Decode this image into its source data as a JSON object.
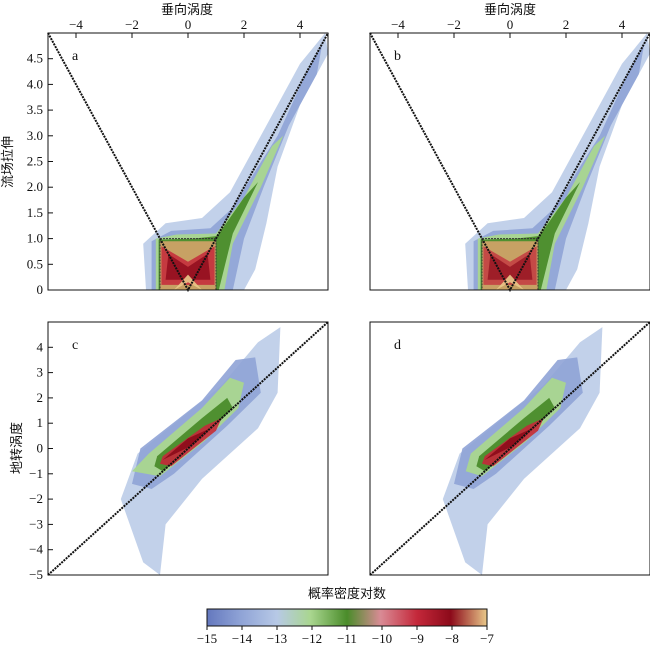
{
  "figure": {
    "top_xlabel": "垂向涡度",
    "ylabel_top": "流场拉伸",
    "ylabel_bottom": "地转涡度",
    "colorbar_label": "概率密度对数"
  },
  "colors": {
    "colormap": [
      "#6478be",
      "#8fa3d6",
      "#b7c9e6",
      "#a9d68f",
      "#6da343",
      "#4a8c2a",
      "#d98b95",
      "#c4283a",
      "#8c0a1a",
      "#d4a36a",
      "#e9c98a"
    ],
    "diagonal_line": "#111111"
  },
  "chart_data": [
    {
      "panel": "a",
      "type": "heatmap",
      "xlabel": "垂向涡度",
      "ylabel": "流场拉伸",
      "xlim": [
        -5,
        5
      ],
      "ylim": [
        0,
        5
      ],
      "xticks": [
        -4,
        -2,
        0,
        2,
        4
      ],
      "yticks": [
        0,
        0.5,
        1.0,
        1.5,
        2.0,
        2.5,
        3.0,
        3.5,
        4.0,
        4.5
      ],
      "reference_lines": [
        "y = |x|"
      ],
      "box": {
        "x": [
          -1,
          1
        ],
        "y": [
          0,
          1
        ]
      },
      "colorbar": {
        "min": -15,
        "max": -7,
        "ticks": [
          -15,
          -14,
          -13,
          -12,
          -11,
          -10,
          -9,
          -8,
          -7
        ]
      }
    },
    {
      "panel": "b",
      "type": "heatmap",
      "xlabel": "垂向涡度",
      "xlim": [
        -5,
        5
      ],
      "ylim": [
        0,
        5
      ],
      "xticks": [
        -4,
        -2,
        0,
        2,
        4
      ],
      "reference_lines": [
        "y = |x|"
      ],
      "box": {
        "x": [
          -1,
          1
        ],
        "y": [
          0,
          1
        ]
      }
    },
    {
      "panel": "c",
      "type": "heatmap",
      "ylabel": "地转涡度",
      "xlim": [
        -5,
        5
      ],
      "ylim": [
        -5,
        5
      ],
      "yticks": [
        -5,
        -4,
        -3,
        -2,
        -1,
        0,
        1,
        2,
        3,
        4
      ],
      "reference_lines": [
        "y = x"
      ]
    },
    {
      "panel": "d",
      "type": "heatmap",
      "xlim": [
        -5,
        5
      ],
      "ylim": [
        -5,
        5
      ],
      "reference_lines": [
        "y = x"
      ]
    }
  ]
}
